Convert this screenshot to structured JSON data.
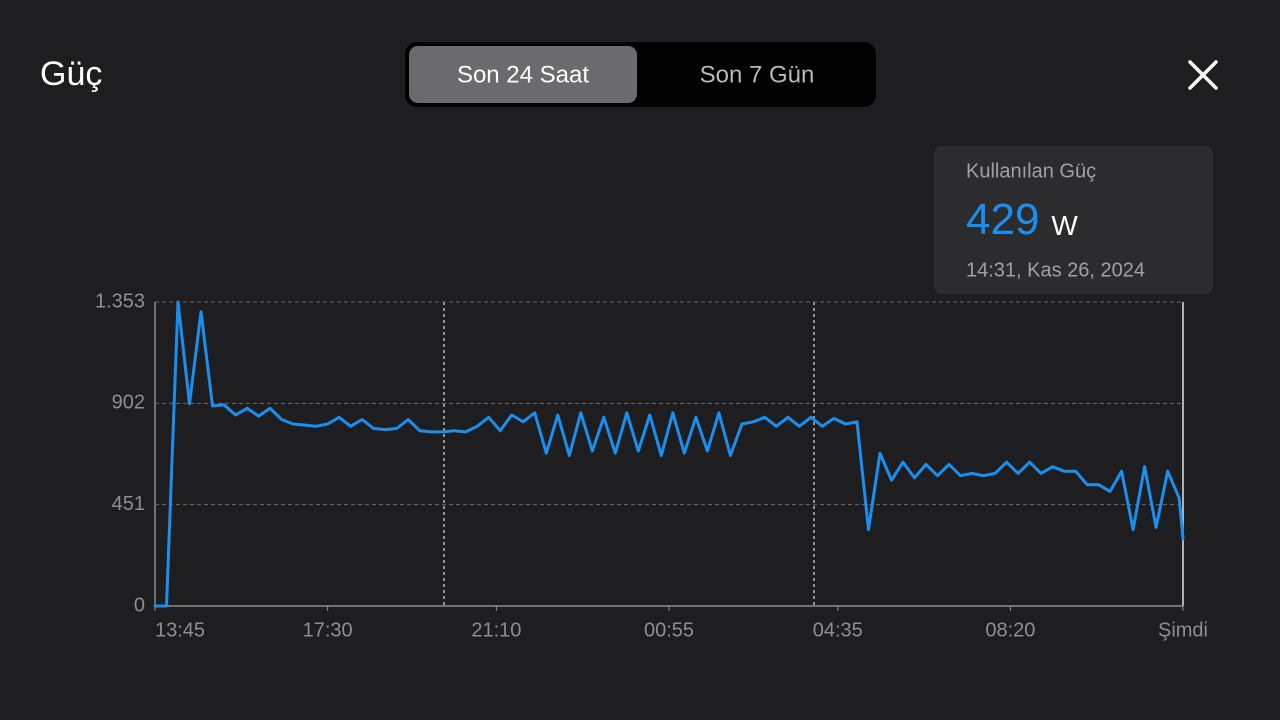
{
  "header": {
    "title": "Güç"
  },
  "tabs": {
    "items": [
      "Son 24 Saat",
      "Son 7 Gün"
    ],
    "selected": 0
  },
  "tooltip": {
    "label": "Kullanılan Güç",
    "value": 429,
    "unit": "W",
    "time": "14:31, Kas 26, 2024"
  },
  "chart_data": {
    "type": "line",
    "color": "#1a8ff0",
    "grid": true,
    "x": [
      "13:45",
      "14:00",
      "14:15",
      "14:30",
      "14:45",
      "15:00",
      "15:15",
      "15:30",
      "15:45",
      "16:00",
      "16:15",
      "16:30",
      "16:45",
      "17:00",
      "17:15",
      "17:30",
      "17:45",
      "18:00",
      "18:15",
      "18:30",
      "18:45",
      "19:00",
      "19:15",
      "19:30",
      "19:45",
      "20:00",
      "20:15",
      "20:30",
      "20:45",
      "21:00",
      "21:15",
      "21:30",
      "21:45",
      "22:00",
      "22:15",
      "22:30",
      "22:45",
      "23:00",
      "23:15",
      "23:30",
      "23:45",
      "00:00",
      "00:15",
      "00:30",
      "00:45",
      "01:00",
      "01:15",
      "01:30",
      "01:45",
      "02:00",
      "02:15",
      "02:30",
      "02:45",
      "03:00",
      "03:15",
      "03:30",
      "03:45",
      "04:00",
      "04:15",
      "04:30",
      "04:45",
      "05:00",
      "05:15",
      "05:30",
      "05:45",
      "06:00",
      "06:15",
      "06:30",
      "06:45",
      "07:00",
      "07:15",
      "07:30",
      "07:45",
      "08:00",
      "08:15",
      "08:30",
      "08:45",
      "09:00",
      "09:15",
      "09:30",
      "09:45",
      "10:00",
      "10:15",
      "10:30",
      "10:45",
      "11:00",
      "11:15",
      "11:30",
      "11:45",
      "12:00",
      "12:05"
    ],
    "values": [
      0,
      0,
      1353,
      900,
      1310,
      890,
      895,
      850,
      880,
      845,
      880,
      830,
      810,
      805,
      800,
      810,
      840,
      800,
      830,
      790,
      785,
      790,
      830,
      780,
      775,
      775,
      780,
      775,
      800,
      840,
      780,
      850,
      820,
      860,
      680,
      850,
      670,
      860,
      690,
      840,
      680,
      860,
      690,
      850,
      670,
      860,
      680,
      840,
      690,
      860,
      670,
      810,
      820,
      840,
      800,
      840,
      800,
      840,
      800,
      835,
      810,
      820,
      340,
      680,
      560,
      640,
      570,
      630,
      580,
      630,
      580,
      590,
      580,
      590,
      640,
      590,
      640,
      590,
      620,
      600,
      600,
      540,
      540,
      510,
      600,
      340,
      620,
      350,
      600,
      480,
      300
    ],
    "xlim": [
      "13:45",
      "12:05"
    ],
    "xticks": [
      "13:45",
      "17:30",
      "21:10",
      "00:55",
      "04:35",
      "08:20",
      {
        "value": "12:05",
        "label": "Şimdi"
      }
    ],
    "ylim": [
      0,
      1353
    ],
    "yticks": [
      0,
      451,
      902,
      {
        "value": 1353,
        "label": "1.353"
      }
    ]
  }
}
